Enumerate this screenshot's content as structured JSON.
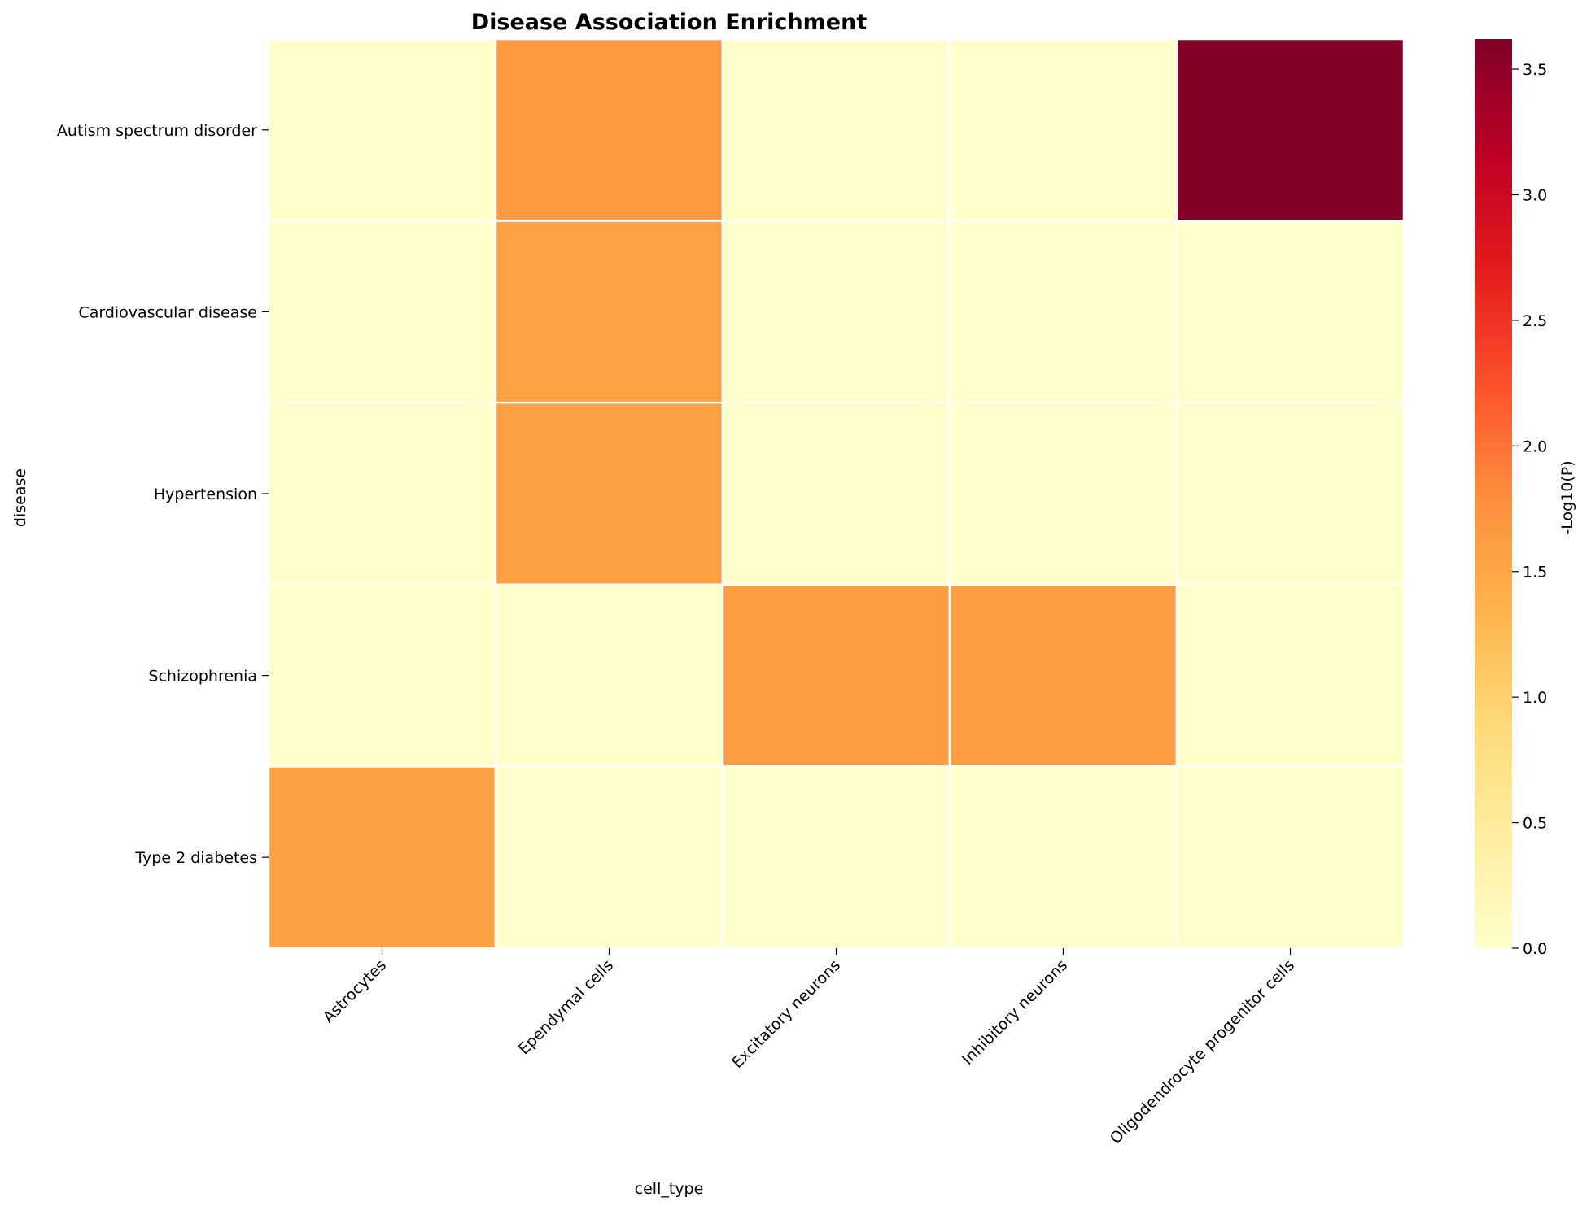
{
  "chart_data": {
    "type": "heatmap",
    "title": "Disease Association Enrichment",
    "xlabel": "cell_type",
    "ylabel": "disease",
    "x_categories": [
      "Astrocytes",
      "Ependymal cells",
      "Excitatory neurons",
      "Inhibitory neurons",
      "Oligodendrocyte progenitor cells"
    ],
    "y_categories": [
      "Autism spectrum disorder",
      "Cardiovascular disease",
      "Hypertension",
      "Schizophrenia",
      "Type 2 diabetes"
    ],
    "values": [
      [
        0,
        1.65,
        0,
        0,
        3.62
      ],
      [
        0,
        1.55,
        0,
        0,
        0
      ],
      [
        0,
        1.57,
        0,
        0,
        0
      ],
      [
        0,
        0,
        1.62,
        1.6,
        0
      ],
      [
        1.56,
        0,
        0,
        0,
        0
      ]
    ],
    "colorbar": {
      "label": "-Log10(P)",
      "colormap": "YlOrRd",
      "range": [
        0,
        3.62
      ],
      "ticks": [
        "0.0",
        "0.5",
        "1.0",
        "1.5",
        "2.0",
        "2.5",
        "3.0",
        "3.5"
      ]
    },
    "cell_border_color": "#ffffff",
    "colormap_stops": [
      "#ffffcc",
      "#ffeda0",
      "#fed976",
      "#feb24c",
      "#fd8d3c",
      "#fc4e2a",
      "#e31a1c",
      "#bd0026",
      "#800026"
    ]
  }
}
